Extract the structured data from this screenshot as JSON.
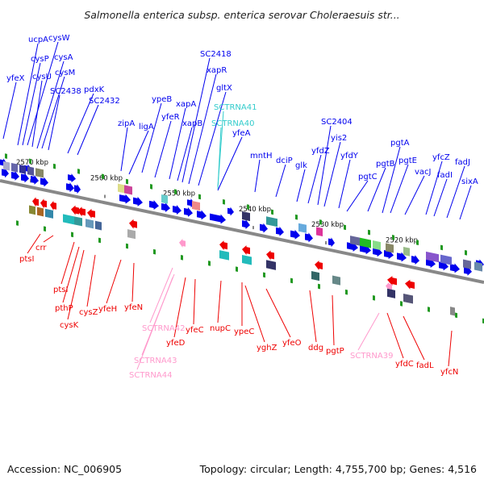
{
  "title": "Salmonella enterica subsp. enterica serovar Choleraesuis str...",
  "footer": {
    "accession": "Accession: NC_006905",
    "summary": "Topology: circular; Length: 4,755,700 bp; Genes: 4,516"
  },
  "colors": {
    "forward_gene": "#0000ee",
    "reverse_gene": "#ee0000",
    "forward_rna": "#33cccc",
    "reverse_rna": "#ff99cc",
    "backbone": "#888888",
    "marker": "#229922"
  },
  "ticks": [
    "2570 kbp",
    "2560 kbp",
    "2550 kbp",
    "2540 kbp",
    "2530 kbp",
    "2520 kbp"
  ],
  "forward_labels": [
    "yfeX",
    "ucpA",
    "cysP",
    "cysW",
    "cysU",
    "cysA",
    "cysM",
    "SC2438",
    "pdxK",
    "SC2432",
    "zipA",
    "ligA",
    "ypeB",
    "yfeR",
    "xapA",
    "xapB",
    "SC2418",
    "xapR",
    "gltX",
    "SCTRNA41",
    "SCTRNA40",
    "yfeA",
    "mntH",
    "dciP",
    "glk",
    "yfdZ",
    "SC2404",
    "yis2",
    "yfdY",
    "pgtC",
    "pgtB",
    "pgtA",
    "pgtE",
    "vacJ",
    "yfcZ",
    "fadI",
    "fadJ",
    "sixA"
  ],
  "reverse_labels": [
    "ptsI",
    "crr",
    "ptsI",
    "pthP",
    "cysK",
    "cysZ",
    "yfeH",
    "yfeN",
    "SCTRNA42",
    "SCTRNA43",
    "SCTRNA44",
    "yfeD",
    "yfeC",
    "nupC",
    "ypeC",
    "yghZ",
    "yfeO",
    "ddg",
    "pgtP",
    "SCTRNA39",
    "yfdC",
    "fadL",
    "yfcN"
  ]
}
